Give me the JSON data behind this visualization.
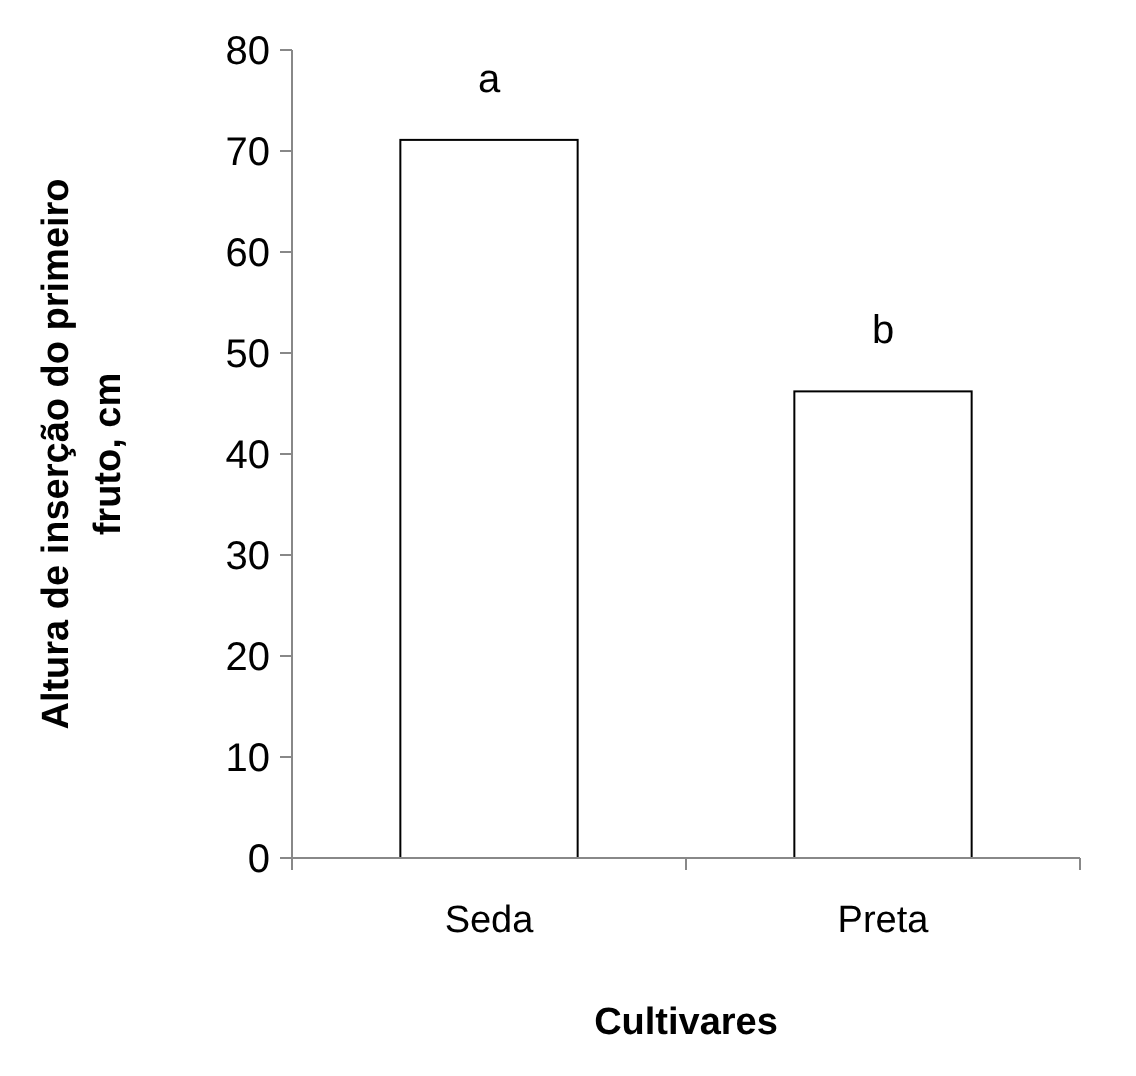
{
  "chart_data": {
    "type": "bar",
    "xlabel": "Cultivares",
    "ylabel": "Altura de inserção do primeiro fruto, cm",
    "categories": [
      "Seda",
      "Preta"
    ],
    "values": [
      71.1,
      46.2
    ],
    "color": "#ffffff",
    "ylim": [
      0,
      80
    ],
    "yticks": [
      0,
      10,
      20,
      30,
      40,
      50,
      60,
      70,
      80
    ],
    "grid": false,
    "annotations": [
      {
        "text": "a",
        "x": "Seda",
        "y": 71.1
      },
      {
        "text": "b",
        "x": "Preta",
        "y": 46.2
      }
    ]
  }
}
